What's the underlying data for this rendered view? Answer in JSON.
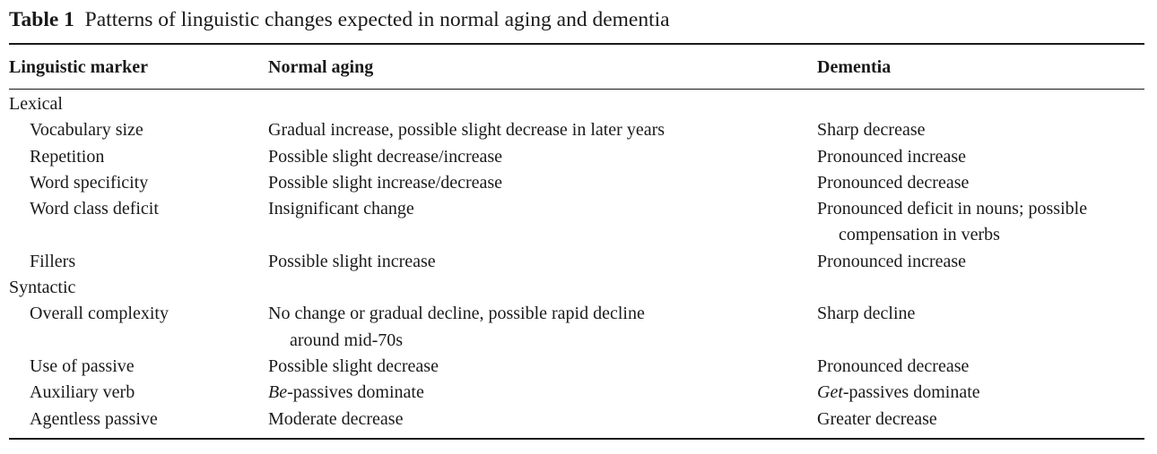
{
  "table": {
    "caption_label": "Table 1",
    "caption_text": "Patterns of linguistic changes expected in normal aging and dementia",
    "headers": {
      "marker": "Linguistic marker",
      "aging": "Normal aging",
      "dementia": "Dementia"
    },
    "groups": [
      {
        "name": "Lexical",
        "rows": [
          {
            "marker": "Vocabulary size",
            "aging": [
              "Gradual increase, possible slight decrease in later years"
            ],
            "dementia": [
              "Sharp decrease"
            ]
          },
          {
            "marker": "Repetition",
            "aging": [
              "Possible slight decrease/increase"
            ],
            "dementia": [
              "Pronounced increase"
            ]
          },
          {
            "marker": "Word specificity",
            "aging": [
              "Possible slight increase/decrease"
            ],
            "dementia": [
              "Pronounced decrease"
            ]
          },
          {
            "marker": "Word class deficit",
            "aging": [
              "Insignificant change"
            ],
            "dementia": [
              "Pronounced deficit in nouns; possible",
              "compensation in verbs"
            ]
          },
          {
            "marker": "Fillers",
            "aging": [
              "Possible slight increase"
            ],
            "dementia": [
              "Pronounced increase"
            ]
          }
        ]
      },
      {
        "name": "Syntactic",
        "rows": [
          {
            "marker": "Overall complexity",
            "aging": [
              "No change or gradual decline, possible rapid decline",
              "around mid-70s"
            ],
            "dementia": [
              "Sharp decline"
            ]
          },
          {
            "marker": "Use of passive",
            "aging": [
              "Possible slight decrease"
            ],
            "dementia": [
              "Pronounced decrease"
            ]
          },
          {
            "marker": "Auxiliary verb",
            "aging_italic": "Be",
            "aging_rest": "-passives dominate",
            "dementia_italic": "Get",
            "dementia_rest": "-passives dominate"
          },
          {
            "marker": "Agentless passive",
            "aging": [
              "Moderate decrease"
            ],
            "dementia": [
              "Greater decrease"
            ]
          }
        ]
      }
    ]
  }
}
